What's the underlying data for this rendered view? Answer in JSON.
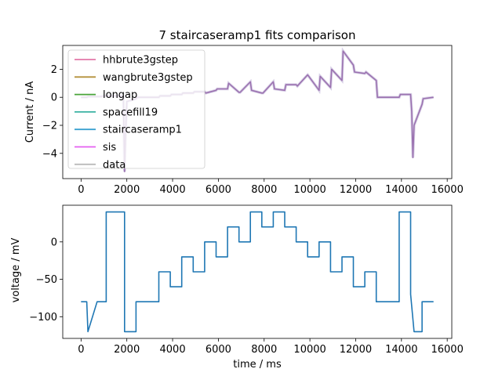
{
  "chart_data": [
    {
      "type": "line",
      "title": "7 staircaseramp1 fits comparison",
      "xlabel": "",
      "ylabel": "Current / nA",
      "xlim": [
        -800,
        16200
      ],
      "ylim": [
        -5.8,
        3.7
      ],
      "xticks": [
        0,
        2000,
        4000,
        6000,
        8000,
        10000,
        12000,
        14000,
        16000
      ],
      "xtick_labels": [
        "0",
        "2000",
        "4000",
        "6000",
        "8000",
        "10000",
        "12000",
        "14000",
        "16000"
      ],
      "yticks": [
        -4,
        -2,
        0,
        2
      ],
      "ytick_labels": [
        "−4",
        "−2",
        "0",
        "2"
      ],
      "grid": false,
      "legend_position": "upper-left",
      "legend": [
        {
          "label": "hhbrute3gstep",
          "color": "#e377a8"
        },
        {
          "label": "wangbrute3gstep",
          "color": "#b5913b"
        },
        {
          "label": "longap",
          "color": "#4aa53a"
        },
        {
          "label": "spacefill19",
          "color": "#3bb3a4"
        },
        {
          "label": "staircaseramp1",
          "color": "#3aa0d0"
        },
        {
          "label": "sis",
          "color": "#e45ff0"
        },
        {
          "label": "data",
          "color": "#bbbbbb"
        }
      ],
      "series_color": "#9b72b0",
      "trace": {
        "x": [
          0,
          250,
          300,
          900,
          950,
          1850,
          1900,
          1950,
          2000,
          2400,
          2450,
          3400,
          3450,
          3900,
          3950,
          4400,
          4450,
          4900,
          4950,
          5400,
          5450,
          5900,
          5950,
          6400,
          6450,
          6900,
          6950,
          7400,
          7450,
          7900,
          7950,
          8400,
          8450,
          8900,
          8950,
          9400,
          9450,
          9900,
          9950,
          10400,
          10450,
          10900,
          10950,
          11400,
          11450,
          11900,
          11950,
          12400,
          12450,
          12900,
          12950,
          13900,
          13950,
          14400,
          14450,
          14500,
          14550,
          14900,
          14950,
          15400
        ],
        "y": [
          0,
          0,
          0.05,
          0.05,
          0.1,
          0.1,
          -5.3,
          -2.5,
          -0.3,
          -0.1,
          0,
          0,
          0.1,
          0.1,
          0.2,
          0.2,
          0.3,
          0.3,
          0.4,
          0.4,
          0.3,
          0.5,
          0.6,
          0.6,
          1.0,
          0.35,
          0.35,
          1.1,
          0.5,
          0.3,
          0.3,
          1.1,
          0.6,
          0.5,
          0.9,
          0.9,
          0.8,
          1.6,
          1.5,
          0.5,
          1.5,
          0.7,
          2.0,
          1.2,
          3.3,
          2.3,
          1.8,
          1.7,
          1.8,
          1.2,
          0.0,
          0.0,
          0.2,
          0.2,
          -1.0,
          -4.3,
          -2.0,
          -0.5,
          -0.1,
          0.0
        ]
      }
    },
    {
      "type": "line",
      "title": "",
      "xlabel": "time / ms",
      "ylabel": "voltage / mV",
      "xlim": [
        -800,
        16200
      ],
      "ylim": [
        -129,
        49
      ],
      "xticks": [
        0,
        2000,
        4000,
        6000,
        8000,
        10000,
        12000,
        14000,
        16000
      ],
      "xtick_labels": [
        "0",
        "2000",
        "4000",
        "6000",
        "8000",
        "10000",
        "12000",
        "14000",
        "16000"
      ],
      "yticks": [
        -100,
        -50,
        0
      ],
      "ytick_labels": [
        "−100",
        "−50",
        "0"
      ],
      "grid": false,
      "series_color": "#1f77b4",
      "trace": {
        "x": [
          0,
          250,
          300,
          700,
          900,
          1100,
          1100,
          1900,
          1900,
          2400,
          2400,
          3400,
          3400,
          3900,
          3900,
          4400,
          4400,
          4900,
          4900,
          5400,
          5400,
          5900,
          5900,
          6400,
          6400,
          6900,
          6900,
          7400,
          7400,
          7900,
          7900,
          8400,
          8400,
          8900,
          8900,
          9400,
          9400,
          9900,
          9900,
          10400,
          10400,
          10900,
          10900,
          11400,
          11400,
          11900,
          11900,
          12400,
          12400,
          12900,
          12900,
          13900,
          13900,
          14400,
          14400,
          14550,
          14550,
          14900,
          14900,
          15400
        ],
        "y": [
          -80,
          -80,
          -120,
          -80,
          -80,
          -80,
          40,
          40,
          -120,
          -120,
          -80,
          -80,
          -40,
          -40,
          -60,
          -60,
          -20,
          -20,
          -40,
          -40,
          0,
          0,
          -20,
          -20,
          20,
          20,
          0,
          0,
          40,
          40,
          20,
          20,
          40,
          40,
          20,
          20,
          0,
          0,
          -20,
          -20,
          0,
          0,
          -40,
          -40,
          -20,
          -20,
          -60,
          -60,
          -40,
          -40,
          -80,
          -80,
          40,
          40,
          -70,
          -120,
          -120,
          -120,
          -80,
          -80
        ]
      }
    }
  ]
}
